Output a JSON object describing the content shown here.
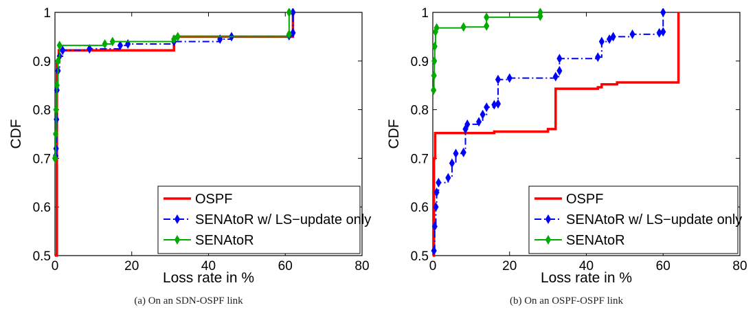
{
  "chart_data": [
    {
      "type": "line",
      "caption": "(a) On an SDN-OSPF link",
      "xlabel": "Loss rate in %",
      "ylabel": "CDF",
      "xlim": [
        0,
        80
      ],
      "ylim": [
        0.5,
        1
      ],
      "xticks": [
        0,
        20,
        40,
        60,
        80
      ],
      "yticks": [
        0.5,
        0.6,
        0.7,
        0.8,
        0.9,
        1
      ],
      "ytick_labels": [
        "0.5",
        "0.6",
        "0.7",
        "0.8",
        "0.9",
        "1"
      ],
      "grid": false,
      "legend_position": "bottom-right",
      "series": [
        {
          "name": "OSPF",
          "color": "#ff0000",
          "style": "solid",
          "marker": "none",
          "points": [
            [
              0,
              0.5
            ],
            [
              0.5,
              0.9
            ],
            [
              1,
              0.922
            ],
            [
              31,
              0.922
            ],
            [
              31,
              0.95
            ],
            [
              62,
              0.95
            ],
            [
              62,
              1.0
            ]
          ]
        },
        {
          "name": "SENAtoR w/ LS−update only",
          "color": "#0000ff",
          "style": "dashdot",
          "marker": "diamond",
          "points": [
            [
              0.2,
              0.705
            ],
            [
              0.3,
              0.72
            ],
            [
              0.4,
              0.78
            ],
            [
              0.5,
              0.84
            ],
            [
              0.8,
              0.88
            ],
            [
              1.2,
              0.91
            ],
            [
              2,
              0.922
            ],
            [
              9,
              0.925
            ],
            [
              17,
              0.932
            ],
            [
              19,
              0.935
            ],
            [
              31,
              0.94
            ],
            [
              43,
              0.945
            ],
            [
              46,
              0.95
            ],
            [
              61,
              0.952
            ],
            [
              62,
              0.958
            ],
            [
              62,
              1.0
            ]
          ]
        },
        {
          "name": "SENAtoR",
          "color": "#00aa00",
          "style": "solid",
          "marker": "diamond",
          "points": [
            [
              0,
              0.7
            ],
            [
              0.2,
              0.75
            ],
            [
              0.3,
              0.8
            ],
            [
              0.5,
              0.85
            ],
            [
              0.8,
              0.9
            ],
            [
              1.2,
              0.932
            ],
            [
              13,
              0.935
            ],
            [
              15,
              0.94
            ],
            [
              31,
              0.945
            ],
            [
              32,
              0.95
            ],
            [
              61,
              0.955
            ],
            [
              61,
              1.0
            ]
          ]
        }
      ]
    },
    {
      "type": "line",
      "caption": "(b) On an OSPF-OSPF link",
      "xlabel": "Loss rate in %",
      "ylabel": "CDF",
      "xlim": [
        0,
        80
      ],
      "ylim": [
        0.5,
        1
      ],
      "xticks": [
        0,
        20,
        40,
        60,
        80
      ],
      "yticks": [
        0.5,
        0.6,
        0.7,
        0.8,
        0.9,
        1
      ],
      "ytick_labels": [
        "0.5",
        "0.6",
        "0.7",
        "0.8",
        "0.9",
        "1"
      ],
      "grid": false,
      "legend_position": "bottom-right",
      "series": [
        {
          "name": "OSPF",
          "color": "#ff0000",
          "style": "solid",
          "marker": "none",
          "points": [
            [
              0,
              0.5
            ],
            [
              0.3,
              0.7
            ],
            [
              0.6,
              0.752
            ],
            [
              16,
              0.755
            ],
            [
              30,
              0.76
            ],
            [
              32,
              0.762
            ],
            [
              32,
              0.843
            ],
            [
              43,
              0.846
            ],
            [
              44,
              0.852
            ],
            [
              48,
              0.856
            ],
            [
              64,
              0.857
            ],
            [
              64,
              1.0
            ]
          ]
        },
        {
          "name": "SENAtoR w/ LS−update only",
          "color": "#0000ff",
          "style": "dashdot",
          "marker": "diamond",
          "points": [
            [
              0.3,
              0.51
            ],
            [
              0.5,
              0.56
            ],
            [
              0.8,
              0.6
            ],
            [
              1,
              0.63
            ],
            [
              1.5,
              0.65
            ],
            [
              4,
              0.66
            ],
            [
              5,
              0.69
            ],
            [
              6,
              0.71
            ],
            [
              8,
              0.712
            ],
            [
              8.5,
              0.76
            ],
            [
              9,
              0.77
            ],
            [
              12,
              0.775
            ],
            [
              13,
              0.79
            ],
            [
              14,
              0.805
            ],
            [
              16,
              0.81
            ],
            [
              17,
              0.812
            ],
            [
              17,
              0.862
            ],
            [
              20,
              0.865
            ],
            [
              32,
              0.868
            ],
            [
              33,
              0.88
            ],
            [
              33,
              0.905
            ],
            [
              43,
              0.908
            ],
            [
              44,
              0.94
            ],
            [
              46,
              0.945
            ],
            [
              47,
              0.95
            ],
            [
              52,
              0.955
            ],
            [
              59,
              0.958
            ],
            [
              60,
              0.96
            ],
            [
              60,
              1.0
            ]
          ]
        },
        {
          "name": "SENAtoR",
          "color": "#00aa00",
          "style": "solid",
          "marker": "diamond",
          "points": [
            [
              0.2,
              0.84
            ],
            [
              0.3,
              0.87
            ],
            [
              0.4,
              0.9
            ],
            [
              0.5,
              0.93
            ],
            [
              0.7,
              0.96
            ],
            [
              1,
              0.968
            ],
            [
              8,
              0.97
            ],
            [
              14,
              0.972
            ],
            [
              14,
              0.99
            ],
            [
              28,
              0.992
            ],
            [
              28,
              1.0
            ]
          ]
        }
      ]
    }
  ]
}
